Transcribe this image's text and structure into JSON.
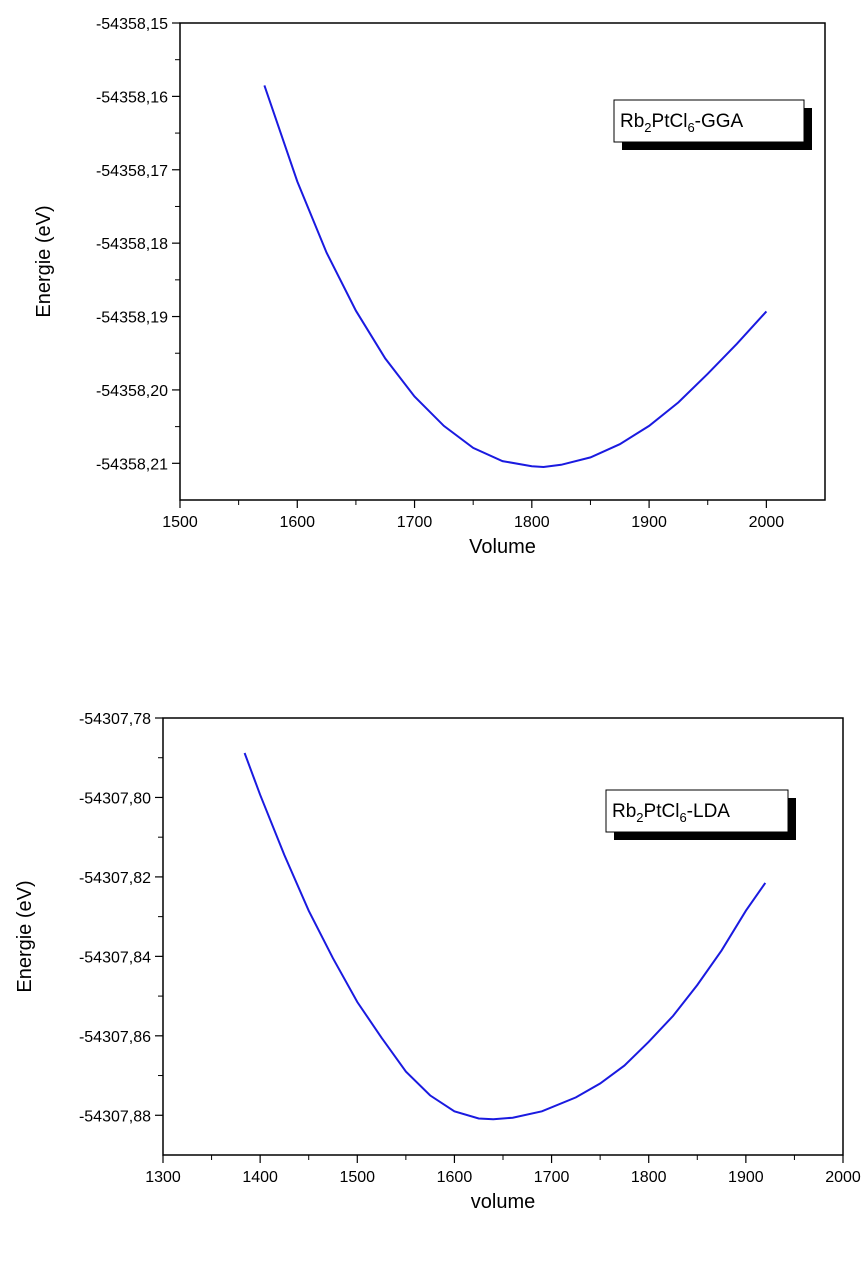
{
  "colors": {
    "curve": "#1a1ae0",
    "axis": "#000000",
    "background": "#ffffff"
  },
  "chart_data": [
    {
      "type": "line",
      "xlabel": "Volume",
      "ylabel": "Energie (eV)",
      "xlim": [
        1500,
        2050
      ],
      "ylim": [
        -54358.215,
        -54358.15
      ],
      "xticks": [
        1500,
        1600,
        1700,
        1800,
        1900,
        2000
      ],
      "xtick_labels": [
        "1500",
        "1600",
        "1700",
        "1800",
        "1900",
        "2000"
      ],
      "yticks": [
        -54358.15,
        -54358.16,
        -54358.17,
        -54358.18,
        -54358.19,
        -54358.2,
        -54358.21
      ],
      "ytick_labels": [
        "-54358,15",
        "-54358,16",
        "-54358,17",
        "-54358,18",
        "-54358,19",
        "-54358,20",
        "-54358,21"
      ],
      "grid": false,
      "legend": {
        "text": [
          "Rb",
          "2",
          "PtCl",
          "6",
          "-GGA"
        ],
        "placement": "top-right"
      },
      "series": [
        {
          "color": "#1a1ae0",
          "x": [
            1572,
            1600,
            1625,
            1650,
            1675,
            1700,
            1725,
            1750,
            1775,
            1800,
            1810,
            1825,
            1850,
            1875,
            1900,
            1925,
            1950,
            1975,
            2000
          ],
          "y": [
            -54358.1585,
            -54358.1716,
            -54358.1813,
            -54358.1892,
            -54358.1957,
            -54358.2009,
            -54358.2049,
            -54358.2079,
            -54358.2097,
            -54358.2104,
            -54358.2105,
            -54358.2102,
            -54358.2092,
            -54358.2074,
            -54358.2049,
            -54358.2017,
            -54358.1978,
            -54358.1937,
            -54358.1893
          ]
        }
      ]
    },
    {
      "type": "line",
      "xlabel": "volume",
      "ylabel": "Energie (eV)",
      "xlim": [
        1300,
        2000
      ],
      "ylim": [
        -54307.89,
        -54307.78
      ],
      "xticks": [
        1300,
        1400,
        1500,
        1600,
        1700,
        1800,
        1900,
        2000
      ],
      "xtick_labels": [
        "1300",
        "1400",
        "1500",
        "1600",
        "1700",
        "1800",
        "1900",
        "2000"
      ],
      "yticks": [
        -54307.78,
        -54307.8,
        -54307.82,
        -54307.84,
        -54307.86,
        -54307.88
      ],
      "ytick_labels": [
        "-54307,78",
        "-54307,80",
        "-54307,82",
        "-54307,84",
        "-54307,86",
        "-54307,88"
      ],
      "grid": false,
      "legend": {
        "text": [
          "Rb",
          "2",
          "PtCl",
          "6",
          "-LDA"
        ],
        "placement": "top-right"
      },
      "series": [
        {
          "color": "#1a1ae0",
          "x": [
            1384,
            1400,
            1425,
            1450,
            1475,
            1500,
            1525,
            1550,
            1575,
            1600,
            1625,
            1640,
            1660,
            1690,
            1725,
            1750,
            1775,
            1800,
            1825,
            1850,
            1875,
            1900,
            1920
          ],
          "y": [
            -54307.7888,
            -54307.7993,
            -54307.8145,
            -54307.8285,
            -54307.8405,
            -54307.8515,
            -54307.8605,
            -54307.869,
            -54307.875,
            -54307.879,
            -54307.8808,
            -54307.881,
            -54307.8806,
            -54307.879,
            -54307.8755,
            -54307.872,
            -54307.8675,
            -54307.8615,
            -54307.855,
            -54307.8472,
            -54307.8385,
            -54307.8285,
            -54307.8215
          ]
        }
      ]
    }
  ]
}
